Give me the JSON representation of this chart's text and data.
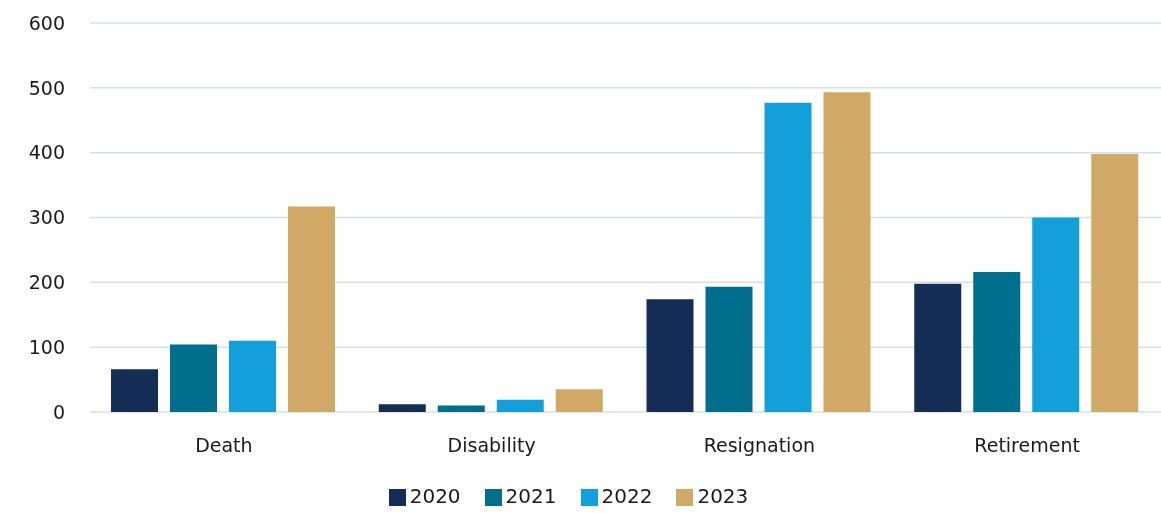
{
  "chart_data": {
    "type": "bar",
    "categories": [
      "Death",
      "Disability",
      "Resignation",
      "Retirement"
    ],
    "series": [
      {
        "name": "2020",
        "color": "#132d54",
        "values": [
          66,
          12,
          174,
          198
        ]
      },
      {
        "name": "2021",
        "color": "#006f8e",
        "values": [
          104,
          10,
          193,
          216
        ]
      },
      {
        "name": "2022",
        "color": "#139fd9",
        "values": [
          110,
          19,
          477,
          300
        ]
      },
      {
        "name": "2023",
        "color": "#d1a966",
        "values": [
          317,
          35,
          493,
          398
        ]
      }
    ],
    "ylim": [
      0,
      600
    ],
    "yticks": [
      0,
      100,
      200,
      300,
      400,
      500,
      600
    ],
    "grid": "y",
    "legend": "bottom"
  }
}
